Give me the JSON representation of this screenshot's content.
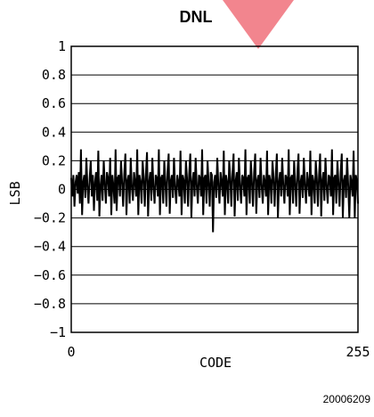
{
  "chart_data": {
    "type": "line",
    "title": "DNL",
    "xlabel": "CODE",
    "ylabel": "LSB",
    "xlim": [
      0,
      255
    ],
    "ylim": [
      -1,
      1
    ],
    "x_ticks": [
      "0",
      "255"
    ],
    "y_ticks": [
      "1",
      "0.8",
      "0.6",
      "0.4",
      "0.2",
      "0",
      "-0.2",
      "-0.4",
      "-0.6",
      "-0.8",
      "-1"
    ],
    "grid": "horizontal",
    "series": [
      {
        "values": [
          0.08,
          -0.05,
          0.1,
          -0.12,
          0.05,
          0.1,
          -0.03,
          0.12,
          -0.1,
          0.28,
          -0.18,
          0.05,
          0.1,
          -0.06,
          0.22,
          0.02,
          -0.1,
          0.08,
          0.2,
          -0.05,
          0.1,
          -0.15,
          0.05,
          0.12,
          -0.08,
          0.27,
          -0.19,
          0.02,
          0.1,
          -0.08,
          0.2,
          0.04,
          -0.1,
          0.12,
          0.08,
          -0.05,
          0.22,
          -0.18,
          0.1,
          0.02,
          -0.1,
          0.28,
          -0.15,
          0.08,
          0.1,
          -0.05,
          0.2,
          0.05,
          -0.12,
          0.1,
          0.25,
          -0.18,
          0.06,
          0.1,
          -0.1,
          0.22,
          0.02,
          -0.08,
          0.12,
          0.05,
          -0.05,
          0.28,
          -0.18,
          0.1,
          0.05,
          -0.1,
          0.2,
          0.08,
          -0.12,
          0.1,
          0.26,
          -0.19,
          0.05,
          0.12,
          -0.08,
          0.22,
          0.02,
          -0.1,
          0.1,
          0.08,
          -0.05,
          0.28,
          -0.18,
          0.08,
          0.1,
          -0.1,
          0.2,
          0.05,
          -0.12,
          0.12,
          0.25,
          -0.17,
          0.06,
          0.1,
          -0.06,
          0.22,
          0.02,
          -0.1,
          0.1,
          0.05,
          -0.05,
          0.27,
          -0.18,
          0.1,
          0.06,
          -0.1,
          0.2,
          0.08,
          -0.12,
          0.1,
          0.25,
          -0.2,
          0.05,
          0.12,
          -0.05,
          0.22,
          0.02,
          -0.1,
          0.1,
          0.08,
          -0.05,
          0.28,
          -0.18,
          0.08,
          0.1,
          -0.1,
          0.2,
          0.04,
          -0.12,
          0.12,
          0.1,
          -0.3,
          0.05,
          0.1,
          -0.06,
          0.22,
          0.02,
          -0.1,
          0.12,
          0.05,
          -0.05,
          0.27,
          -0.18,
          0.1,
          0.05,
          -0.1,
          0.2,
          0.08,
          -0.12,
          0.1,
          0.25,
          -0.19,
          0.06,
          0.12,
          -0.08,
          0.22,
          0.02,
          -0.1,
          0.1,
          0.08,
          -0.05,
          0.28,
          -0.18,
          0.08,
          0.1,
          -0.1,
          0.2,
          0.05,
          -0.12,
          0.12,
          0.25,
          -0.17,
          0.06,
          0.1,
          -0.06,
          0.22,
          0.02,
          -0.1,
          0.1,
          0.05,
          -0.05,
          0.27,
          -0.18,
          0.1,
          0.06,
          -0.1,
          0.2,
          0.08,
          -0.12,
          0.1,
          0.25,
          -0.2,
          0.05,
          0.12,
          -0.05,
          0.22,
          0.02,
          -0.1,
          0.1,
          0.08,
          -0.05,
          0.28,
          -0.18,
          0.08,
          0.1,
          -0.1,
          0.2,
          0.04,
          -0.12,
          0.12,
          0.25,
          -0.17,
          0.05,
          0.1,
          -0.06,
          0.22,
          0.02,
          -0.1,
          0.12,
          0.05,
          -0.05,
          0.27,
          -0.18,
          0.1,
          0.05,
          -0.1,
          0.2,
          0.08,
          -0.12,
          0.1,
          0.25,
          -0.19,
          0.06,
          0.12,
          -0.08,
          0.22,
          0.02,
          -0.1,
          0.1,
          0.08,
          -0.05,
          0.28,
          -0.18,
          0.08,
          0.1,
          -0.1,
          0.2,
          0.05,
          -0.12,
          0.12,
          0.25,
          -0.2,
          0.06,
          0.1,
          -0.06,
          0.22,
          0.02,
          -0.2,
          0.1,
          0.05,
          -0.05,
          0.27,
          -0.2,
          0.1,
          0.06,
          -0.1
        ]
      }
    ],
    "line_color": "#000000"
  },
  "watermark": {
    "color": "#f0707a"
  },
  "figure_code": "20006209"
}
